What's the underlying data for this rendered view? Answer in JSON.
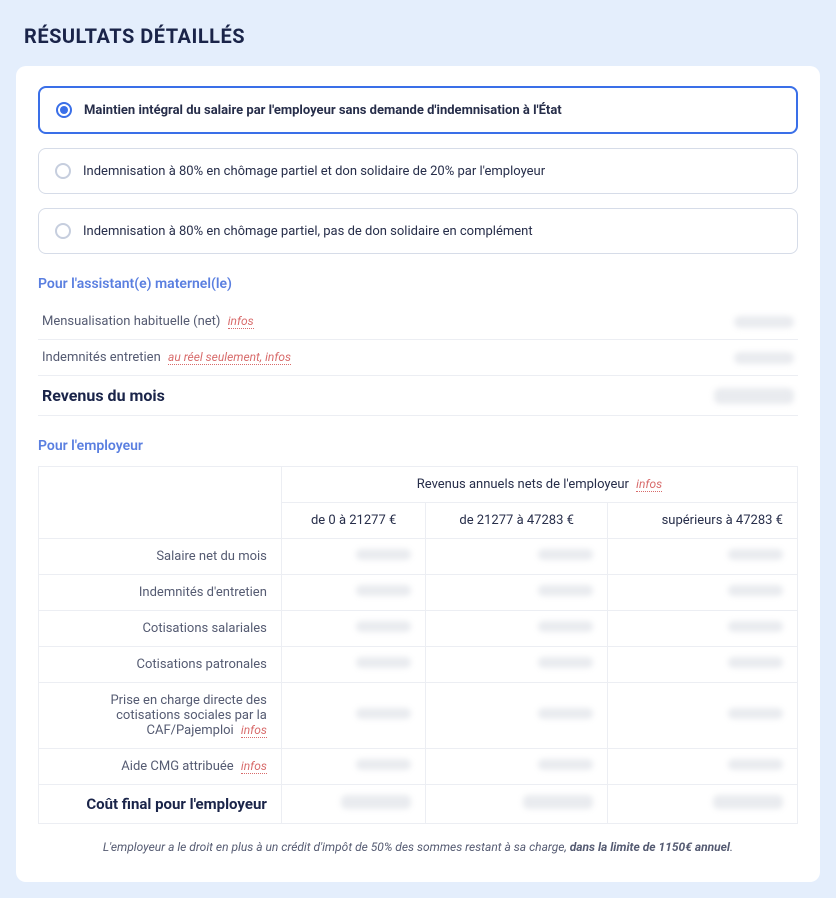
{
  "page": {
    "title": "RÉSULTATS DÉTAILLÉS"
  },
  "options": [
    {
      "label": "Maintien intégral du salaire par l'employeur sans demande d'indemnisation à l'État",
      "selected": true
    },
    {
      "label": "Indemnisation à 80% en chômage partiel et don solidaire de 20% par l'employeur",
      "selected": false
    },
    {
      "label": "Indemnisation à 80% en chômage partiel, pas de don solidaire en complément",
      "selected": false
    }
  ],
  "assistant": {
    "section_label": "Pour l'assistant(e) maternel(le)",
    "rows": [
      {
        "label": "Mensualisation habituelle (net)",
        "info": "infos"
      },
      {
        "label": "Indemnités entretien",
        "info": "au réel seulement, infos"
      }
    ],
    "total_label": "Revenus du mois"
  },
  "employer": {
    "section_label": "Pour l'employeur",
    "group_header": "Revenus annuels nets de l'employeur",
    "group_info": "infos",
    "columns": [
      "de 0 à 21277 €",
      "de 21277 à 47283 €",
      "supérieurs à 47283 €"
    ],
    "rows": [
      {
        "label": "Salaire net du mois",
        "info": null
      },
      {
        "label": "Indemnités d'entretien",
        "info": null
      },
      {
        "label": "Cotisations salariales",
        "info": null
      },
      {
        "label": "Cotisations patronales",
        "info": null
      },
      {
        "label": "Prise en charge directe des cotisations sociales par la CAF/Pajemploi",
        "info": "infos"
      },
      {
        "label": "Aide CMG attribuée",
        "info": "infos"
      }
    ],
    "total_label": "Coût final pour l'employeur"
  },
  "footnote": {
    "text_before": "L'employeur a le droit en plus à un crédit d'impôt de 50% des sommes restant à sa charge, ",
    "text_bold": "dans la limite de 1150€ annuel",
    "text_after": "."
  },
  "style": {
    "page_bg": "#e4eefc",
    "card_bg": "#ffffff",
    "accent": "#3a6fe8",
    "text": "#272e4a",
    "muted": "#555b72",
    "border": "#eceef3",
    "link": "#d86b6b",
    "section_label": "#5a7fe0"
  }
}
